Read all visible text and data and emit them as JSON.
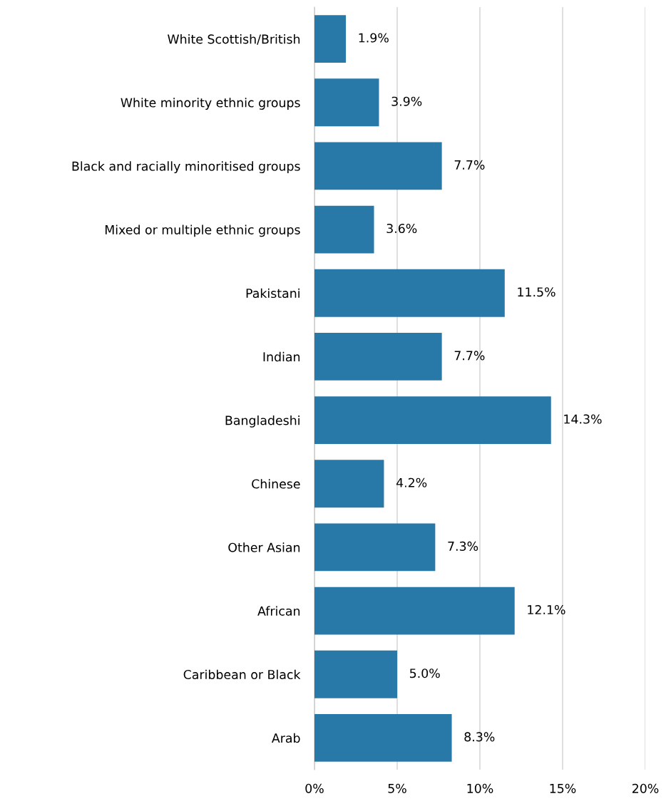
{
  "chart_data": {
    "type": "bar",
    "orientation": "horizontal",
    "categories": [
      "White Scottish/British",
      "White minority ethnic groups",
      "Black and racially minoritised groups",
      "Mixed or multiple ethnic groups",
      "Pakistani",
      "Indian",
      "Bangladeshi",
      "Chinese",
      "Other Asian",
      "African",
      "Caribbean or Black",
      "Arab"
    ],
    "values": [
      1.9,
      3.9,
      7.7,
      3.6,
      11.5,
      7.7,
      14.3,
      4.2,
      7.3,
      12.1,
      5.0,
      8.3
    ],
    "value_labels": [
      "1.9%",
      "3.9%",
      "7.7%",
      "3.6%",
      "11.5%",
      "7.7%",
      "14.3%",
      "4.2%",
      "7.3%",
      "12.1%",
      "5.0%",
      "8.3%"
    ],
    "color": "#2878a8",
    "xlim": [
      0,
      20
    ],
    "xticks": [
      {
        "value": 0,
        "label": "0%"
      },
      {
        "value": 5,
        "label": "5%"
      },
      {
        "value": 10,
        "label": "10%"
      },
      {
        "value": 15,
        "label": "15%"
      },
      {
        "value": 20,
        "label": "20%"
      }
    ],
    "grid": "x"
  }
}
